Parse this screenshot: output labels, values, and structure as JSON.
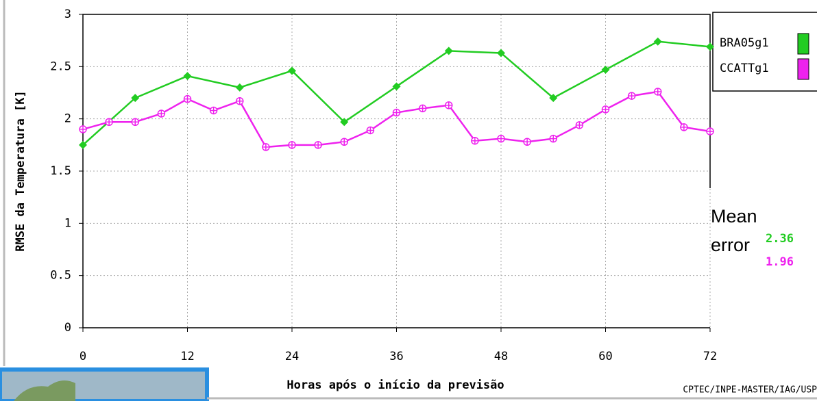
{
  "chart_data": {
    "type": "line",
    "ylabel": "RMSE da Temperatura [K]",
    "xlabel": "Horas após o início da previsão",
    "credit": "CPTEC/INPE-MASTER/IAG/USP",
    "mean_label": "Mean error",
    "xlim": [
      0,
      72
    ],
    "xticks": [
      0,
      12,
      24,
      36,
      48,
      60,
      72
    ],
    "ylim": [
      0,
      3
    ],
    "yticks": [
      0,
      0.5,
      1,
      1.5,
      2,
      2.5,
      3
    ],
    "grid": true,
    "legend": "right",
    "series": [
      {
        "name": "BRA05g1",
        "color": "#22cc22",
        "marker": "diamond",
        "mean": 2.36,
        "x": [
          0,
          6,
          12,
          18,
          24,
          30,
          36,
          42,
          48,
          54,
          60,
          66,
          72
        ],
        "values": [
          1.75,
          2.2,
          2.41,
          2.3,
          2.46,
          1.97,
          2.31,
          2.65,
          2.63,
          2.2,
          2.47,
          2.74,
          2.69
        ]
      },
      {
        "name": "CCATTg1",
        "color": "#ee22ee",
        "marker": "circle",
        "mean": 1.96,
        "x": [
          0,
          3,
          6,
          9,
          12,
          15,
          18,
          21,
          24,
          27,
          30,
          33,
          36,
          39,
          42,
          45,
          48,
          51,
          54,
          57,
          60,
          63,
          66,
          69,
          72
        ],
        "values": [
          1.9,
          1.97,
          1.97,
          2.05,
          2.19,
          2.08,
          2.17,
          1.73,
          1.75,
          1.75,
          1.78,
          1.89,
          2.06,
          2.1,
          2.13,
          1.79,
          1.81,
          1.78,
          1.81,
          1.94,
          2.09,
          2.22,
          2.26,
          1.92,
          1.88
        ]
      }
    ]
  }
}
